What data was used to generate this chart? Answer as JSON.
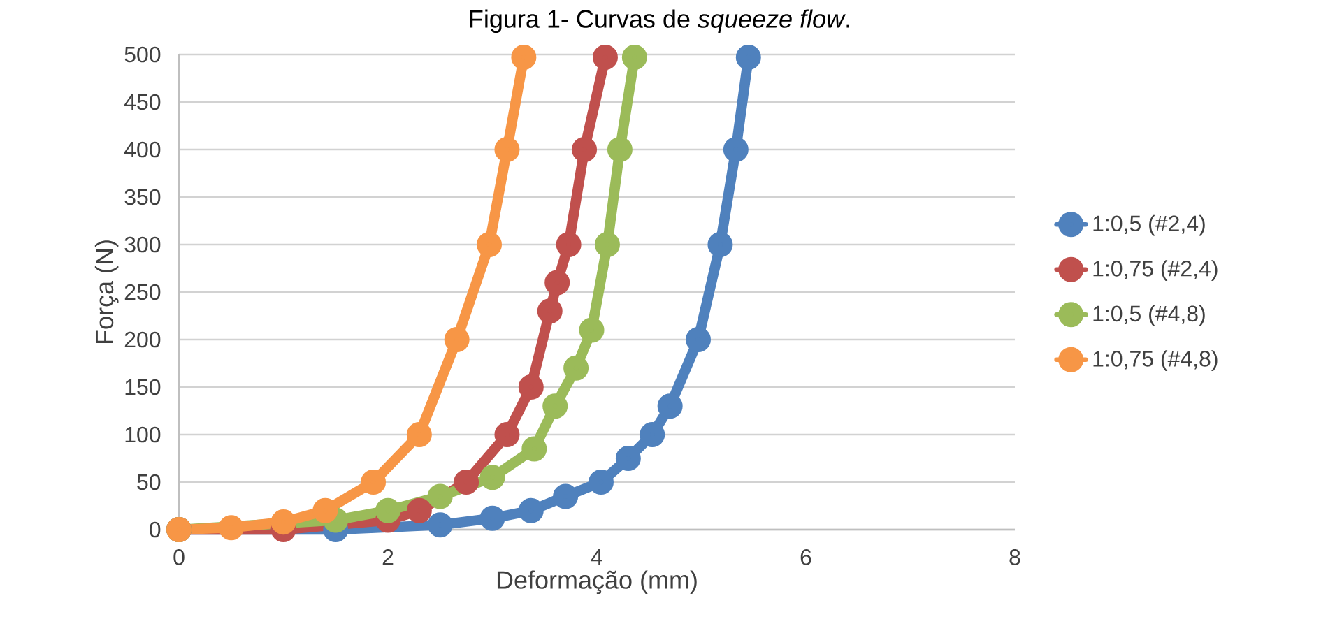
{
  "chart_data": {
    "type": "line",
    "title": "Figura 1- Curvas de *squeeze flow*.",
    "xlabel": "Deformação (mm)",
    "ylabel": "Força (N)",
    "xlim": [
      0,
      8
    ],
    "xticks": [
      0,
      2,
      4,
      6,
      8
    ],
    "ylim": [
      0,
      500
    ],
    "yticks": [
      0,
      50,
      100,
      150,
      200,
      250,
      300,
      350,
      400,
      450,
      500
    ],
    "grid": "y",
    "legend": "right",
    "marker": "circle",
    "line_style": "solid",
    "series": [
      {
        "name": "1:0,5 (#2,4)",
        "color": "#4f81bd",
        "x": [
          0,
          1.5,
          2.5,
          3,
          3.37,
          3.7,
          4.04,
          4.3,
          4.53,
          4.7,
          4.97,
          5.18,
          5.33,
          5.45
        ],
        "values": [
          0,
          0,
          5,
          12,
          20,
          35,
          50,
          75,
          100,
          130,
          200,
          300,
          400,
          497
        ]
      },
      {
        "name": "1:0,75 (#2,4)",
        "color": "#c0504d",
        "x": [
          0,
          1,
          2,
          2.3,
          2.75,
          3.14,
          3.37,
          3.55,
          3.62,
          3.73,
          3.88,
          4.08
        ],
        "values": [
          0,
          0,
          10,
          20,
          50,
          100,
          150,
          230,
          260,
          300,
          400,
          497
        ]
      },
      {
        "name": "1:0,5 (#4,8)",
        "color": "#9bbb59",
        "x": [
          0,
          1.5,
          2,
          2.5,
          3,
          3.4,
          3.6,
          3.8,
          3.95,
          4.1,
          4.22,
          4.36
        ],
        "values": [
          0,
          10,
          20,
          35,
          55,
          85,
          130,
          170,
          210,
          300,
          400,
          497
        ]
      },
      {
        "name": "1:0,75 (#4,8)",
        "color": "#f79646",
        "x": [
          0,
          0.5,
          1,
          1.4,
          1.86,
          2.3,
          2.66,
          2.97,
          3.14,
          3.3
        ],
        "values": [
          0,
          2,
          8,
          20,
          50,
          100,
          200,
          300,
          400,
          497
        ]
      }
    ]
  }
}
